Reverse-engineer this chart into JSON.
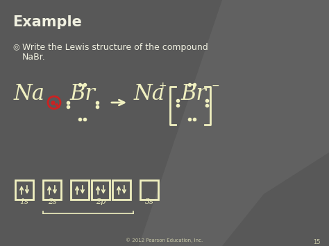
{
  "bg_color": "#585858",
  "bg_color_right": "#7a7a7a",
  "title": "Example",
  "title_color": "#f0f0e0",
  "title_fontsize": 15,
  "bullet_text_line1": "Write the Lewis structure of the compound",
  "bullet_text_line2": "NaBr.",
  "bullet_color": "#f0f0e0",
  "bullet_fontsize": 9,
  "cream": "#f0f0c0",
  "red": "#cc2222",
  "copyright": "© 2012 Pearson Education, Inc.",
  "copyright_color": "#ccccaa",
  "copyright_fontsize": 5,
  "page_num": "15",
  "page_num_color": "#ccccaa",
  "page_num_fontsize": 6
}
